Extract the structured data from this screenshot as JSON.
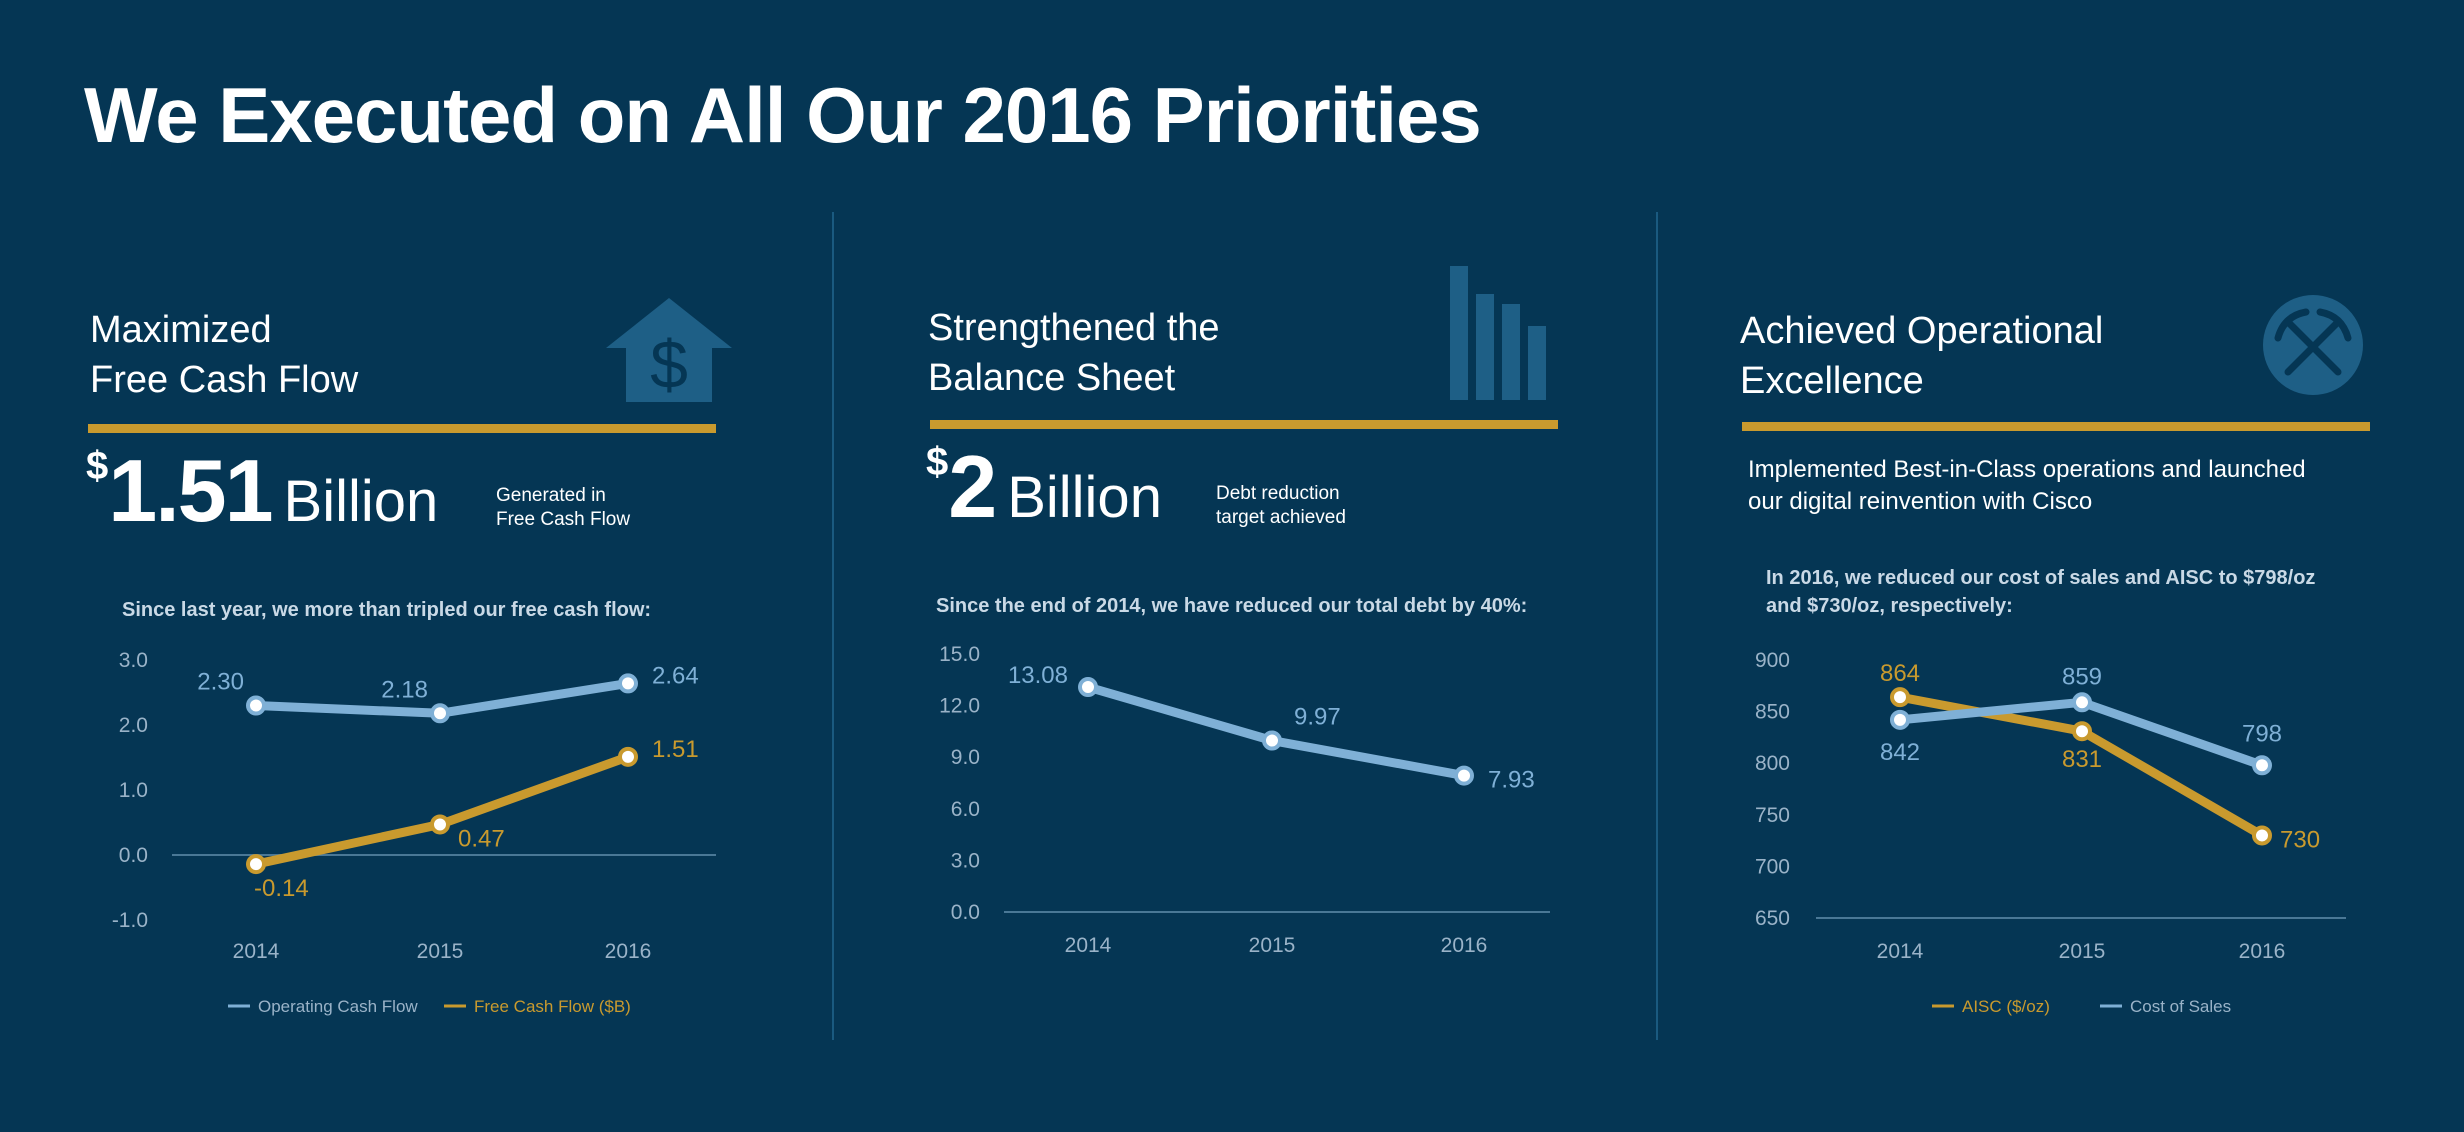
{
  "title": "We Executed on All Our 2016 Priorities",
  "colors": {
    "background": "#053654",
    "gold": "#c99a2e",
    "blue_line": "#7fb0d6",
    "icon": "#1e5f86",
    "axis": "#4a7896",
    "tick_text": "#9ab3c8"
  },
  "panels": [
    {
      "heading": [
        "Maximized",
        "Free Cash Flow"
      ],
      "icon": "house-dollar-icon",
      "figure": {
        "currency": "$",
        "number": "1.51",
        "unit": "Billion"
      },
      "note": [
        "Generated in",
        "Free Cash Flow"
      ],
      "caption": [
        "Since last year, we more than tripled our free cash flow:"
      ]
    },
    {
      "heading": [
        "Strengthened the",
        "Balance Sheet"
      ],
      "icon": "bar-chart-icon",
      "figure": {
        "currency": "$",
        "number": "2",
        "unit": "Billion"
      },
      "note": [
        "Debt reduction",
        "target achieved"
      ],
      "caption": [
        "Since the end of 2014, we have reduced our total debt by 40%:"
      ]
    },
    {
      "heading": [
        "Achieved Operational",
        "Excellence"
      ],
      "icon": "crossed-pickaxes-icon",
      "paragraph": [
        "Implemented Best-in-Class operations and launched",
        "our digital reinvention with Cisco"
      ],
      "caption": [
        "In 2016, we reduced our cost of sales and AISC to $798/oz",
        "and $730/oz, respectively:"
      ]
    }
  ],
  "chart_data": [
    {
      "type": "line",
      "x": [
        "2014",
        "2015",
        "2016"
      ],
      "ylim": [
        -1.0,
        3.0
      ],
      "yticks": [
        "3.0",
        "2.0",
        "1.0",
        "0.0",
        "-1.0"
      ],
      "ytick_values": [
        3.0,
        2.0,
        1.0,
        0.0,
        -1.0
      ],
      "series": [
        {
          "name": "Operating Cash Flow",
          "values": [
            2.3,
            2.18,
            2.64
          ],
          "labels": [
            "2.30",
            "2.18",
            "2.64"
          ],
          "color": "#7fb0d6"
        },
        {
          "name": "Free Cash Flow ($B)",
          "values": [
            -0.14,
            0.47,
            1.51
          ],
          "labels": [
            "-0.14",
            "0.47",
            "1.51"
          ],
          "color": "#c99a2e"
        }
      ],
      "legend": "bottom"
    },
    {
      "type": "line",
      "x": [
        "2014",
        "2015",
        "2016"
      ],
      "ylim": [
        0,
        15
      ],
      "yticks": [
        "15.0",
        "12.0",
        "9.0",
        "6.0",
        "3.0",
        "0.0"
      ],
      "ytick_values": [
        15,
        12,
        9,
        6,
        3,
        0
      ],
      "series": [
        {
          "values": [
            13.08,
            9.97,
            7.93
          ],
          "labels": [
            "13.08",
            "9.97",
            "7.93"
          ],
          "color": "#7fb0d6"
        }
      ]
    },
    {
      "type": "line",
      "x": [
        "2014",
        "2015",
        "2016"
      ],
      "ylim": [
        650,
        900
      ],
      "yticks": [
        "900",
        "850",
        "800",
        "750",
        "700",
        "650"
      ],
      "ytick_values": [
        900,
        850,
        800,
        750,
        700,
        650
      ],
      "series": [
        {
          "name": "AISC ($/oz)",
          "values": [
            864,
            831,
            730
          ],
          "labels": [
            "864",
            "831",
            "730"
          ],
          "color": "#c99a2e"
        },
        {
          "name": "Cost of Sales",
          "values": [
            842,
            859,
            798
          ],
          "labels": [
            "842",
            "859",
            "798"
          ],
          "color": "#7fb0d6"
        }
      ],
      "legend": "bottom"
    }
  ]
}
